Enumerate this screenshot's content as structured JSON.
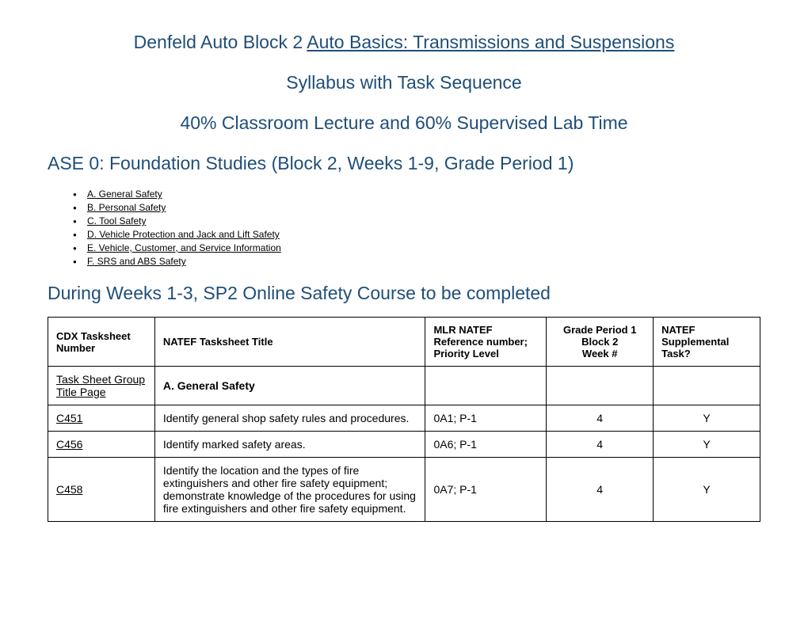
{
  "header": {
    "title_prefix": "Denfeld Auto Block 2  ",
    "title_underline": "Auto Basics: Transmissions and Suspensions",
    "subtitle1": "Syllabus with Task Sequence",
    "subtitle2": "40% Classroom Lecture and 60% Supervised Lab Time",
    "section_heading": "ASE 0: Foundation Studies (Block 2, Weeks 1-9, Grade Period 1)"
  },
  "bullets": [
    "A. General Safety",
    "B. Personal Safety",
    "C. Tool Safety",
    "D. Vehicle Protection and Jack and Lift Safety",
    "E. Vehicle, Customer, and Service Information",
    "F. SRS and ABS Safety"
  ],
  "table_heading": "During Weeks 1-3, SP2 Online Safety Course to be completed",
  "table": {
    "headers": {
      "col1": "CDX Tasksheet Number",
      "col2": "NATEF Tasksheet Title",
      "col3": "MLR NATEF Reference number; Priority Level",
      "col4": "Grade Period 1\nBlock 2\nWeek #",
      "col5": "NATEF Supplemental Task?"
    },
    "rows": [
      {
        "col1": "Task Sheet Group Title Page",
        "col1_link": true,
        "col2": "A. General Safety",
        "col2_bold": true,
        "col3": "",
        "col4": "",
        "col5": ""
      },
      {
        "col1": "C451",
        "col1_link": true,
        "col2": "Identify general shop safety rules and procedures.",
        "col2_bold": false,
        "col3": "0A1; P-1",
        "col4": "4",
        "col5": "Y"
      },
      {
        "col1": "C456",
        "col1_link": true,
        "col2": "Identify marked safety areas.",
        "col2_bold": false,
        "col3": "0A6; P-1",
        "col4": "4",
        "col5": "Y"
      },
      {
        "col1": "C458",
        "col1_link": true,
        "col2": "Identify the location and the types of fire extinguishers and other fire safety equipment; demonstrate knowledge of the procedures for using fire extinguishers and other fire safety equipment.",
        "col2_bold": false,
        "col3": "0A7; P-1",
        "col4": "4",
        "col5": "Y"
      }
    ]
  },
  "styling": {
    "heading_color": "#1f4e79",
    "text_color": "#000000",
    "background_color": "#ffffff",
    "border_color": "#000000",
    "title_fontsize": 23,
    "bullet_fontsize": 12,
    "table_fontsize": 14,
    "header_fontsize": 13
  }
}
